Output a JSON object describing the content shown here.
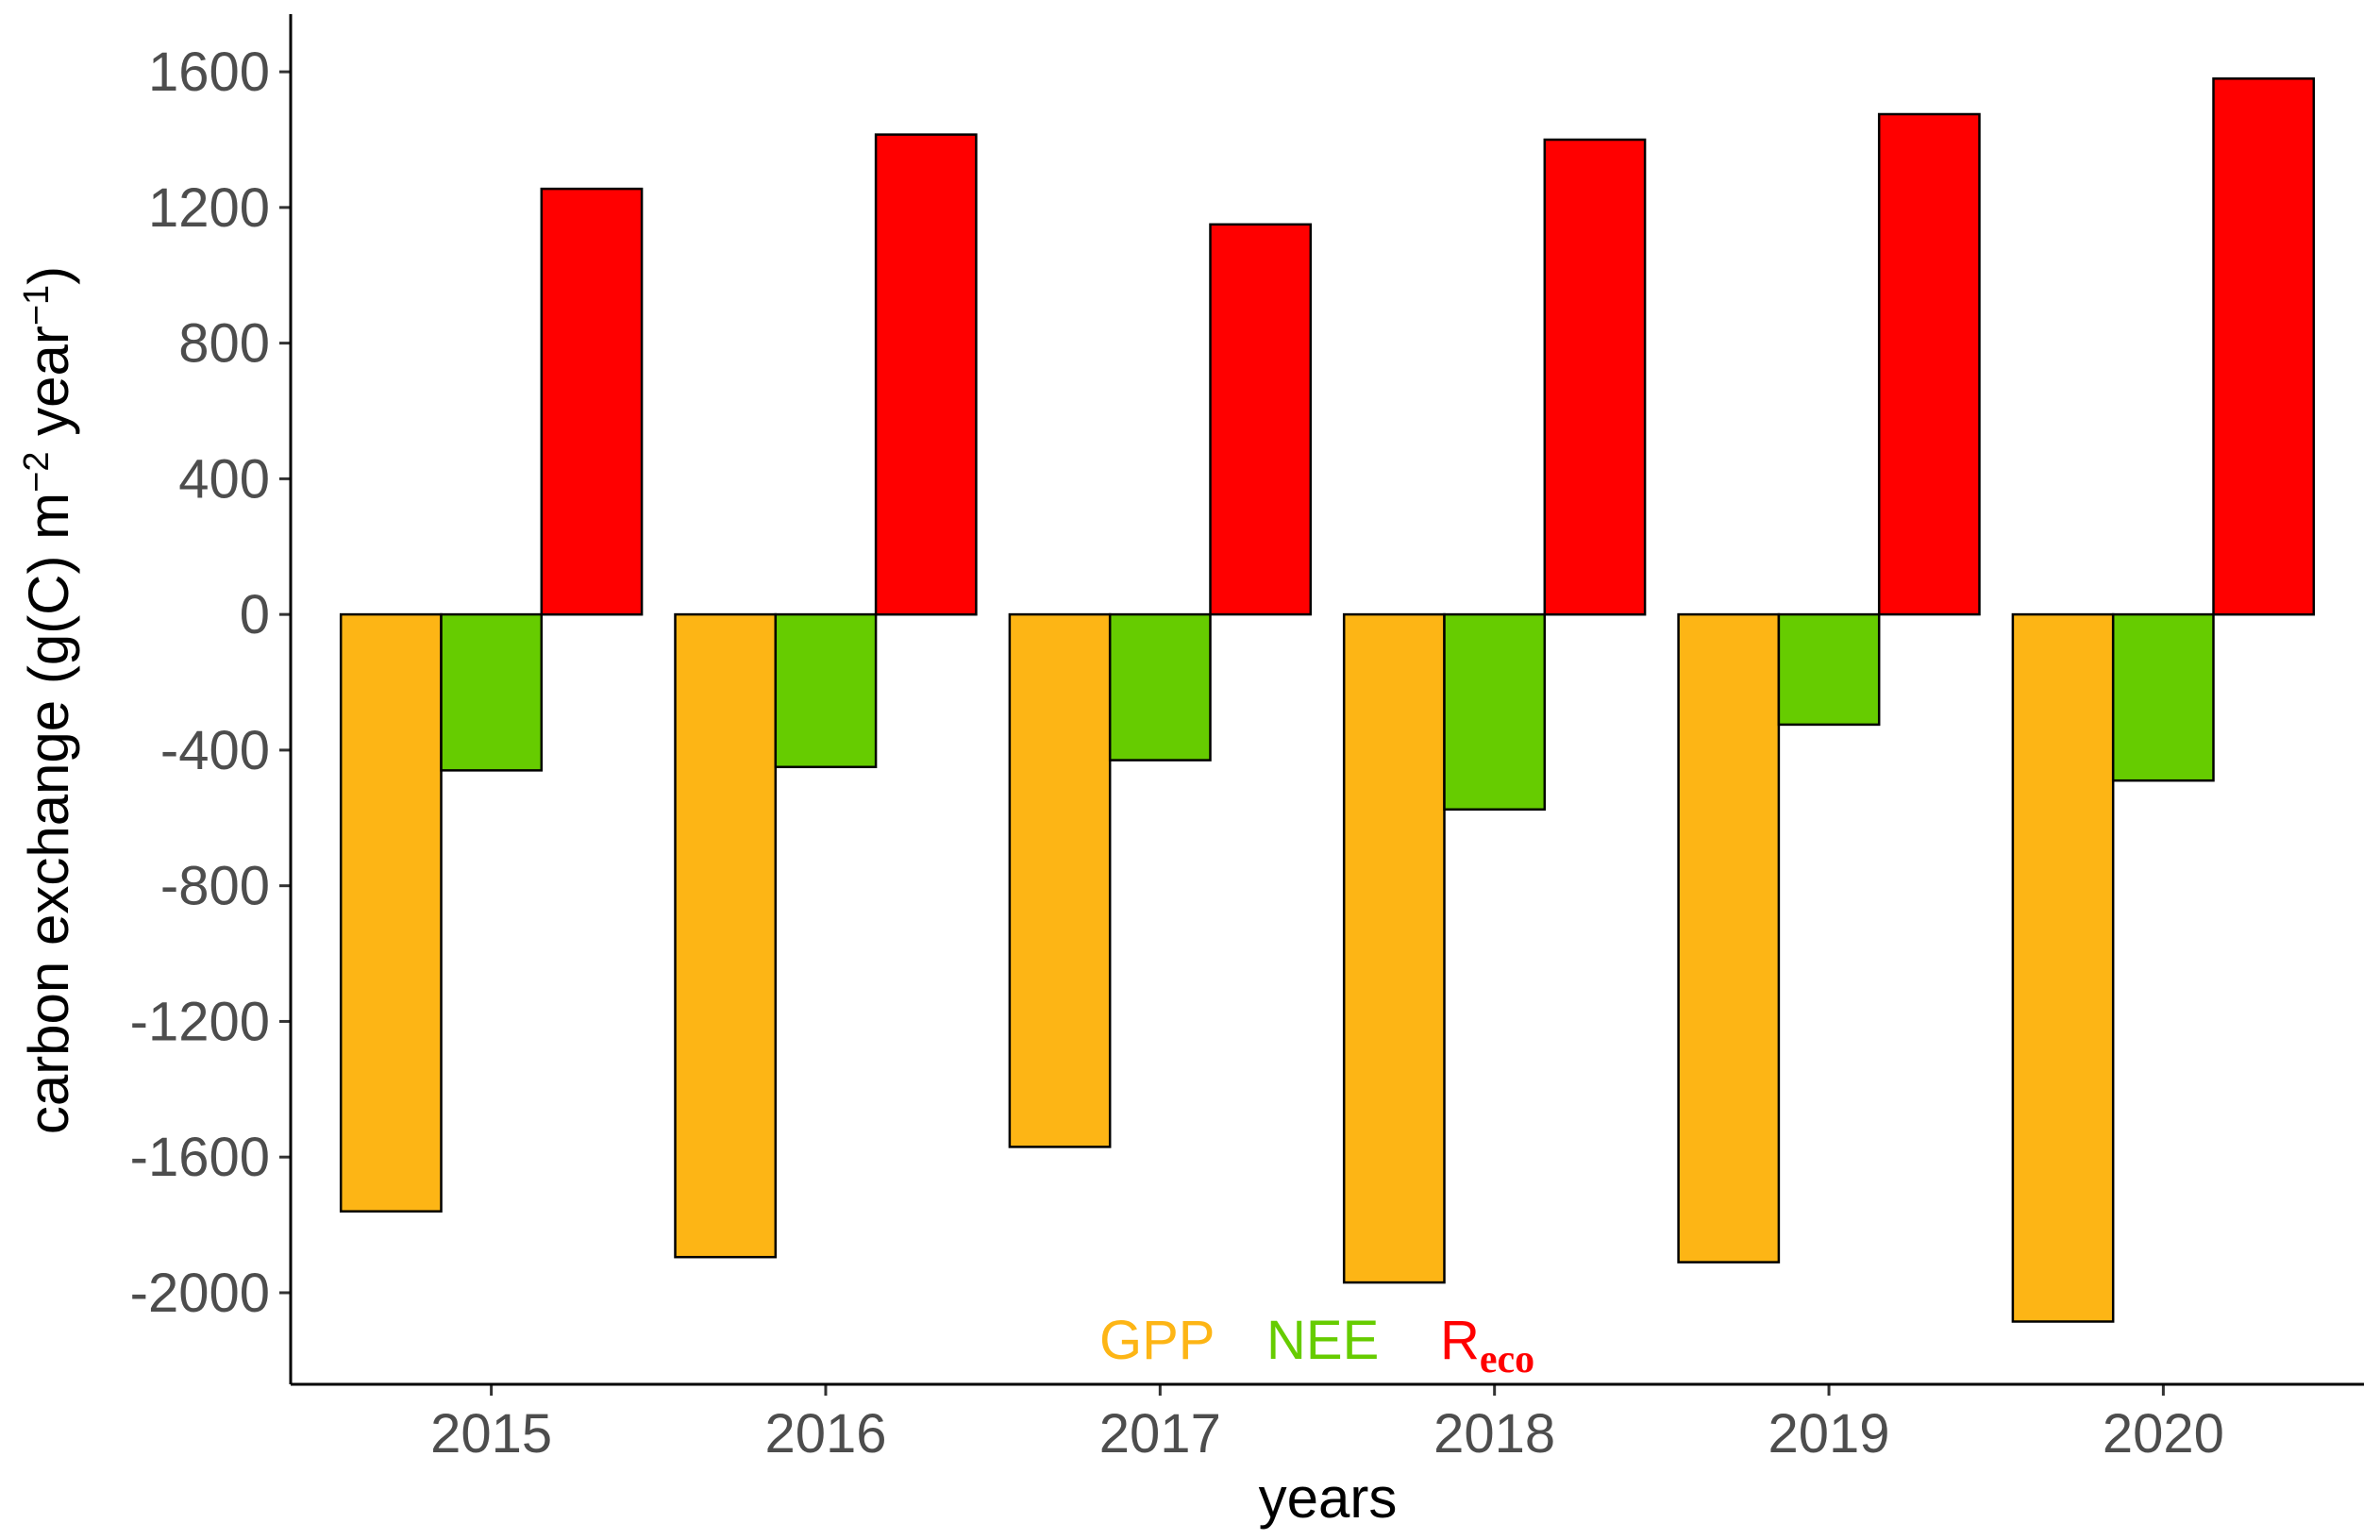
{
  "chart_data": {
    "type": "bar",
    "categories": [
      "2015",
      "2016",
      "2017",
      "2018",
      "2019",
      "2020"
    ],
    "series": [
      {
        "name": "GPP",
        "color": "#FDB515",
        "values": [
          -1760,
          -1895,
          -1570,
          -1970,
          -1910,
          -2085
        ]
      },
      {
        "name": "NEE",
        "color": "#66CC00",
        "values": [
          -460,
          -450,
          -430,
          -575,
          -325,
          -490
        ]
      },
      {
        "name": "Reco",
        "color": "#FF0000",
        "values": [
          1255,
          1415,
          1150,
          1400,
          1475,
          1580
        ]
      }
    ],
    "ylim": [
      -2270,
      1770
    ],
    "yticks": [
      1600,
      1200,
      800,
      400,
      0,
      -400,
      -800,
      -1200,
      -1600,
      -2000
    ],
    "xlabel": "years",
    "ylabel": {
      "main": "carbon exchange (g(C) m",
      "exp1": "−2",
      "mid": " year",
      "exp2": "−1",
      "end": ")"
    },
    "legend": {
      "position": "bottom-center",
      "items": [
        {
          "label": "GPP",
          "color": "#FDB515"
        },
        {
          "label": "NEE",
          "color": "#66CC00"
        },
        {
          "label": "R",
          "subscript": "eco",
          "color": "#FF0000"
        }
      ]
    },
    "grid": false
  }
}
